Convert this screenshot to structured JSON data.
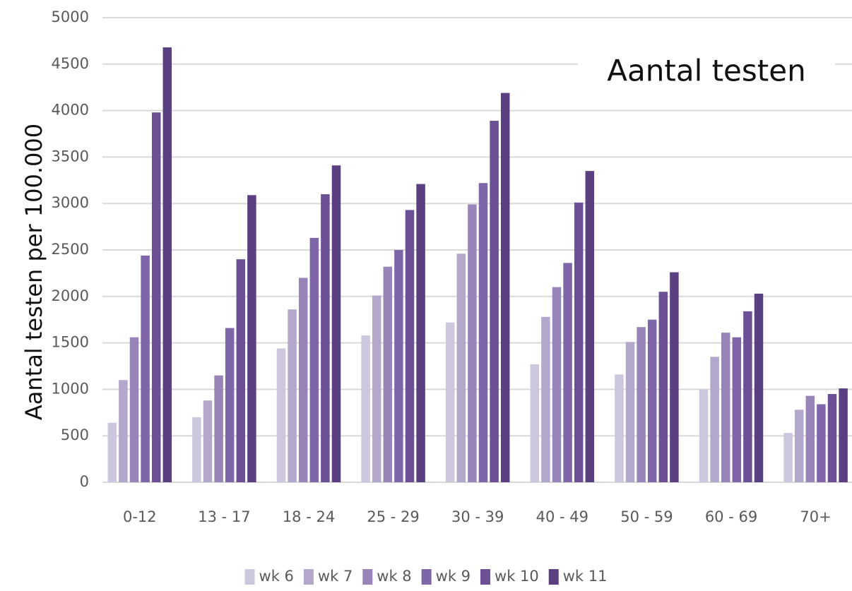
{
  "chart_data": {
    "type": "bar",
    "title": "Aantal testen",
    "y_label": "Aantal testen per 100.000",
    "categories": [
      "0-12",
      "13 - 17",
      "18 - 24",
      "25 - 29",
      "30 - 39",
      "40 - 49",
      "50 - 59",
      "60 - 69",
      "70+"
    ],
    "series": [
      {
        "name": "wk 6",
        "color": "#cdc7dd",
        "values": [
          640,
          700,
          1440,
          1580,
          1720,
          1270,
          1160,
          1000,
          530
        ]
      },
      {
        "name": "wk 7",
        "color": "#b3a8cc",
        "values": [
          1100,
          880,
          1860,
          2010,
          2460,
          1780,
          1510,
          1350,
          780
        ]
      },
      {
        "name": "wk 8",
        "color": "#9884b9",
        "values": [
          1560,
          1150,
          2200,
          2320,
          2990,
          2100,
          1670,
          1610,
          930
        ]
      },
      {
        "name": "wk 9",
        "color": "#7f66a9",
        "values": [
          2440,
          1660,
          2630,
          2500,
          3220,
          2360,
          1750,
          1560,
          840
        ]
      },
      {
        "name": "wk 10",
        "color": "#6b5096",
        "values": [
          3980,
          2400,
          3100,
          2930,
          3890,
          3010,
          2050,
          1840,
          950
        ]
      },
      {
        "name": "wk 11",
        "color": "#5a4080",
        "values": [
          4680,
          3090,
          3410,
          3210,
          4190,
          3350,
          2260,
          2030,
          1010
        ]
      }
    ],
    "ylim": [
      0,
      5000
    ],
    "yticks": [
      0,
      500,
      1000,
      1500,
      2000,
      2500,
      3000,
      3500,
      4000,
      4500,
      5000
    ],
    "grid": true,
    "legend": "bottom"
  }
}
